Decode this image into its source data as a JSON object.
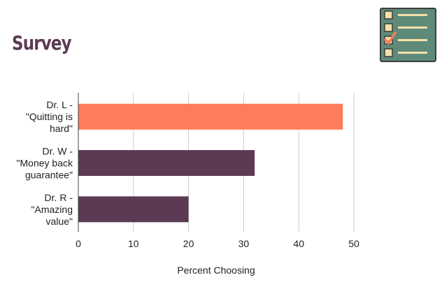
{
  "page": {
    "title": "Survey",
    "icon": "checklist-icon"
  },
  "colors": {
    "title": "#5c3a54",
    "highlight_bar": "#fe7b5b",
    "bar": "#5c3a54",
    "grid": "#cccccc",
    "axis": "#444444",
    "icon_bg": "#5e8a7a",
    "icon_border": "#3d3d3d",
    "icon_box": "#f5e0a8",
    "icon_line": "#f5e0a8",
    "icon_check": "#fe7b5b"
  },
  "chart_data": {
    "type": "bar",
    "orientation": "horizontal",
    "categories": [
      [
        "Dr. L -",
        "\"Quitting is",
        "hard\""
      ],
      [
        "Dr. W -",
        "\"Money back",
        "guarantee\""
      ],
      [
        "Dr. R -",
        "\"Amazing",
        "value\""
      ]
    ],
    "values": [
      48,
      32,
      20
    ],
    "highlight_index": 0,
    "xlabel": "Percent Choosing",
    "ylabel": "",
    "xlim": [
      0,
      50
    ],
    "xticks": [
      "0",
      "10",
      "20",
      "30",
      "40",
      "50"
    ],
    "grid": true,
    "legend": "none"
  }
}
